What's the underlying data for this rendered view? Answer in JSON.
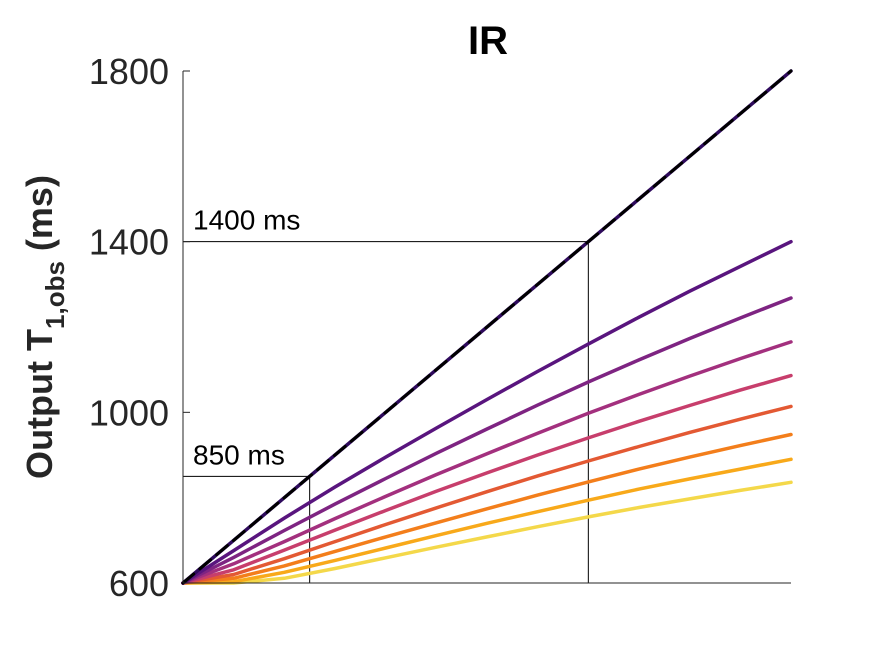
{
  "chart_data": {
    "type": "line",
    "title": "IR",
    "ylabel": {
      "main": "Output T",
      "sub": "1,obs",
      "unit": " (ms)"
    },
    "xlim": [
      600,
      1800
    ],
    "ylim": [
      600,
      1800
    ],
    "yticks": [
      600,
      1000,
      1400,
      1800
    ],
    "x": [
      600,
      700,
      800,
      900,
      1000,
      1100,
      1200,
      1300,
      1400,
      1500,
      1600,
      1700,
      1800
    ],
    "series": [
      {
        "color": "#000000",
        "dashed": true,
        "values": [
          600,
          700,
          800,
          900,
          1000,
          1100,
          1200,
          1300,
          1400,
          1500,
          1600,
          1700,
          1800
        ]
      },
      {
        "color": "#2e0a5c",
        "values": [
          600,
          700,
          800,
          900,
          1000,
          1100,
          1200,
          1300,
          1400,
          1500,
          1600,
          1700,
          1800
        ]
      },
      {
        "color": "#59157e",
        "values": [
          600,
          676,
          752,
          825,
          895,
          963,
          1030,
          1096,
          1160,
          1223,
          1284,
          1342,
          1400
        ]
      },
      {
        "color": "#7e2482",
        "values": [
          600,
          660,
          723,
          785,
          845,
          904,
          961,
          1017,
          1071,
          1123,
          1173,
          1221,
          1268
        ]
      },
      {
        "color": "#a3307e",
        "values": [
          600,
          645,
          697,
          751,
          803,
          854,
          903,
          951,
          998,
          1042,
          1085,
          1126,
          1165
        ]
      },
      {
        "color": "#c73e6c",
        "values": [
          600,
          631,
          677,
          724,
          770,
          815,
          858,
          900,
          940,
          979,
          1016,
          1052,
          1086
        ]
      },
      {
        "color": "#e35933",
        "values": [
          600,
          620,
          657,
          697,
          737,
          776,
          814,
          851,
          886,
          920,
          953,
          984,
          1014
        ]
      },
      {
        "color": "#f37e1b",
        "values": [
          600,
          611,
          640,
          674,
          708,
          741,
          774,
          806,
          837,
          867,
          895,
          922,
          948
        ]
      },
      {
        "color": "#f8a91a",
        "values": [
          600,
          603,
          625,
          653,
          682,
          711,
          740,
          767,
          794,
          820,
          844,
          867,
          890
        ]
      },
      {
        "color": "#f4d84a",
        "values": [
          600,
          600,
          611,
          634,
          659,
          684,
          708,
          732,
          755,
          777,
          797,
          817,
          836
        ]
      }
    ],
    "reference_lines": [
      {
        "x": 850,
        "y": 850,
        "label": "850 ms"
      },
      {
        "x": 1400,
        "y": 1400,
        "label": "1400 ms"
      }
    ],
    "grid": false,
    "legend": "none"
  }
}
